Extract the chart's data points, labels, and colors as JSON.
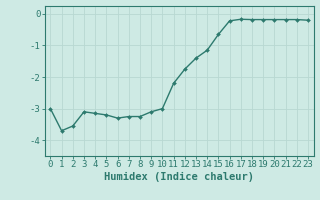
{
  "x": [
    0,
    1,
    2,
    3,
    4,
    5,
    6,
    7,
    8,
    9,
    10,
    11,
    12,
    13,
    14,
    15,
    16,
    17,
    18,
    19,
    20,
    21,
    22,
    23
  ],
  "y": [
    -3.0,
    -3.7,
    -3.55,
    -3.1,
    -3.15,
    -3.2,
    -3.3,
    -3.25,
    -3.25,
    -3.1,
    -3.0,
    -2.2,
    -1.75,
    -1.4,
    -1.15,
    -0.65,
    -0.22,
    -0.17,
    -0.18,
    -0.18,
    -0.18,
    -0.18,
    -0.18,
    -0.2
  ],
  "line_color": "#2d7a6e",
  "marker": "D",
  "marker_size": 2.0,
  "line_width": 1.0,
  "bg_color": "#ceeae4",
  "grid_color": "#b8d8d2",
  "axis_color": "#2d7a6e",
  "tick_color": "#2d7a6e",
  "xlabel": "Humidex (Indice chaleur)",
  "xlabel_fontsize": 7.5,
  "tick_fontsize": 6.5,
  "xlim": [
    -0.5,
    23.5
  ],
  "ylim": [
    -4.5,
    0.25
  ],
  "yticks": [
    0,
    -1,
    -2,
    -3,
    -4
  ],
  "xticks": [
    0,
    1,
    2,
    3,
    4,
    5,
    6,
    7,
    8,
    9,
    10,
    11,
    12,
    13,
    14,
    15,
    16,
    17,
    18,
    19,
    20,
    21,
    22,
    23
  ]
}
